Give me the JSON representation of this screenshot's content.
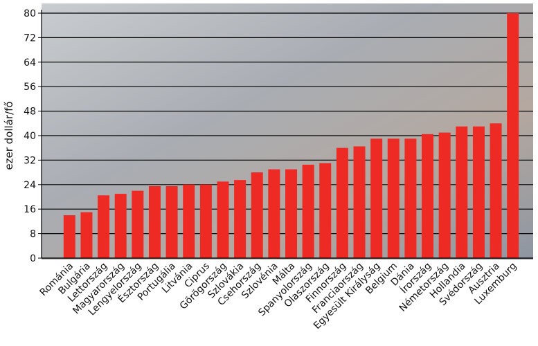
{
  "chart_data": {
    "type": "bar",
    "y_label": "ezer dollár/fő",
    "categories": [
      "Románia",
      "Bulgária",
      "Lettország",
      "Magyarország",
      "Lengyelország",
      "Észtország",
      "Portugália",
      "Litvánia",
      "Ciprus",
      "Görögország",
      "Szlovákia",
      "Csehország",
      "Szlovénia",
      "Málta",
      "Spanyolország",
      "Olaszország",
      "Finnország",
      "Franciaország",
      "Egyesült Királyság",
      "Belgium",
      "Dánia",
      "Írország",
      "Németország",
      "Hollandia",
      "Svédország",
      "Ausztria",
      "Luxemburg"
    ],
    "values": [
      14,
      15,
      20.5,
      21,
      22,
      23.5,
      23.5,
      24,
      24,
      25,
      25.5,
      28,
      29,
      29,
      30.5,
      31,
      36,
      36.5,
      39,
      39,
      39,
      40.5,
      41,
      43,
      43,
      44,
      80
    ],
    "color": "#ee2a24",
    "ylim": [
      0,
      80
    ],
    "yticks": [
      0,
      8,
      16,
      24,
      32,
      40,
      48,
      56,
      64,
      72,
      80
    ],
    "grid": true
  }
}
